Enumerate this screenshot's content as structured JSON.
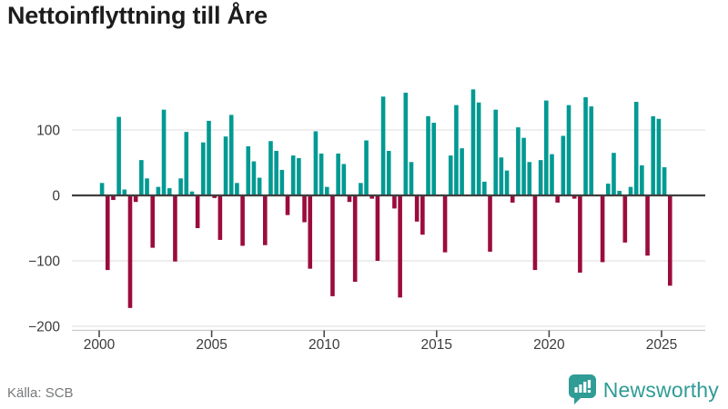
{
  "title": "Nettoinflyttning till Åre",
  "source": "Källa: SCB",
  "brand": {
    "name": "Newsworthy"
  },
  "colors": {
    "positive": "#009a93",
    "negative": "#9b0c3d",
    "grid": "#e3e3e3",
    "zero_line": "#3f3f3f",
    "axis_line": "#c9c9c9",
    "tick": "#4a4a4a",
    "axis_text": "#3b3b3b",
    "brand_teal": "#2f9c95"
  },
  "chart_data": {
    "type": "bar",
    "title": "Nettoinflyttning till Åre",
    "xlabel": "",
    "ylabel": "",
    "ylim": [
      -200,
      170
    ],
    "grid": true,
    "legend": "none",
    "x_ticks": [
      "2000",
      "2005",
      "2010",
      "2015",
      "2020",
      "2025"
    ],
    "x_tick_years": [
      2000,
      2005,
      2010,
      2015,
      2020,
      2025
    ],
    "y_ticks": [
      100,
      0,
      -100,
      -200
    ],
    "y_tick_labels": [
      "100",
      "0",
      "−100",
      "−200"
    ],
    "frequency": "quarterly",
    "x": [
      "2000Q1",
      "2000Q2",
      "2000Q3",
      "2000Q4",
      "2001Q1",
      "2001Q2",
      "2001Q3",
      "2001Q4",
      "2002Q1",
      "2002Q2",
      "2002Q3",
      "2002Q4",
      "2003Q1",
      "2003Q2",
      "2003Q3",
      "2003Q4",
      "2004Q1",
      "2004Q2",
      "2004Q3",
      "2004Q4",
      "2005Q1",
      "2005Q2",
      "2005Q3",
      "2005Q4",
      "2006Q1",
      "2006Q2",
      "2006Q3",
      "2006Q4",
      "2007Q1",
      "2007Q2",
      "2007Q3",
      "2007Q4",
      "2008Q1",
      "2008Q2",
      "2008Q3",
      "2008Q4",
      "2009Q1",
      "2009Q2",
      "2009Q3",
      "2009Q4",
      "2010Q1",
      "2010Q2",
      "2010Q3",
      "2010Q4",
      "2011Q1",
      "2011Q2",
      "2011Q3",
      "2011Q4",
      "2012Q1",
      "2012Q2",
      "2012Q3",
      "2012Q4",
      "2013Q1",
      "2013Q2",
      "2013Q3",
      "2013Q4",
      "2014Q1",
      "2014Q2",
      "2014Q3",
      "2014Q4",
      "2015Q1",
      "2015Q2",
      "2015Q3",
      "2015Q4",
      "2016Q1",
      "2016Q2",
      "2016Q3",
      "2016Q4",
      "2017Q1",
      "2017Q2",
      "2017Q3",
      "2017Q4",
      "2018Q1",
      "2018Q2",
      "2018Q3",
      "2018Q4",
      "2019Q1",
      "2019Q2",
      "2019Q3",
      "2019Q4",
      "2020Q1",
      "2020Q2",
      "2020Q3",
      "2020Q4",
      "2021Q1",
      "2021Q2",
      "2021Q3",
      "2021Q4",
      "2022Q1",
      "2022Q2",
      "2022Q3",
      "2022Q4",
      "2023Q1",
      "2023Q2",
      "2023Q3",
      "2023Q4",
      "2024Q1",
      "2024Q2",
      "2024Q3",
      "2024Q4",
      "2025Q1",
      "2025Q2"
    ],
    "values": [
      19,
      -114,
      -7,
      120,
      9,
      -172,
      -10,
      54,
      26,
      -80,
      13,
      131,
      11,
      -101,
      26,
      97,
      6,
      -50,
      81,
      114,
      -4,
      -68,
      90,
      123,
      19,
      -77,
      75,
      52,
      27,
      -76,
      83,
      68,
      39,
      -30,
      61,
      57,
      -41,
      -112,
      98,
      64,
      13,
      -154,
      64,
      48,
      -10,
      -132,
      19,
      84,
      -5,
      -100,
      151,
      68,
      -20,
      -156,
      157,
      51,
      -40,
      -60,
      121,
      111,
      0,
      -87,
      61,
      138,
      72,
      0,
      162,
      142,
      21,
      -86,
      131,
      58,
      38,
      -11,
      104,
      88,
      51,
      -114,
      54,
      145,
      63,
      -11,
      91,
      138,
      -5,
      -118,
      150,
      136,
      0,
      -102,
      18,
      65,
      7,
      -72,
      13,
      143,
      46,
      -92,
      121,
      117,
      43,
      -138
    ]
  }
}
